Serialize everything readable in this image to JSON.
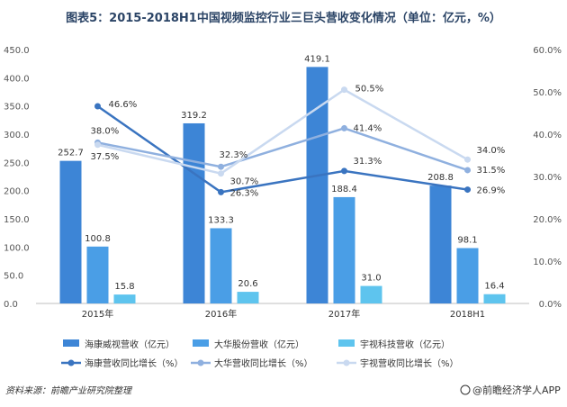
{
  "chart_data": {
    "type": "bar",
    "title": "图表5：2015-2018H1中国视频监控行业三巨头营收变化情况（单位：亿元，%）",
    "categories": [
      "2015年",
      "2016年",
      "2017年",
      "2018H1"
    ],
    "series": [
      {
        "name": "海康威视营收（亿元）",
        "kind": "bar",
        "axis": "left",
        "color": "#3d85d6",
        "values": [
          252.7,
          319.2,
          419.1,
          208.8
        ]
      },
      {
        "name": "大华股份营收（亿元）",
        "kind": "bar",
        "axis": "left",
        "color": "#4a9ee6",
        "values": [
          100.8,
          133.3,
          188.4,
          98.1
        ]
      },
      {
        "name": "宇视科技营收（亿元）",
        "kind": "bar",
        "axis": "left",
        "color": "#5ec4ee",
        "values": [
          15.8,
          20.6,
          31.0,
          16.4
        ]
      },
      {
        "name": "海康营收同比增长（%）",
        "kind": "line",
        "axis": "right",
        "color": "#3a74c0",
        "values": [
          46.6,
          26.3,
          31.3,
          26.9
        ]
      },
      {
        "name": "大华营收同比增长（%）",
        "kind": "line",
        "axis": "right",
        "color": "#8fb0df",
        "values": [
          38.0,
          32.3,
          41.4,
          31.5
        ]
      },
      {
        "name": "宇视营收同比增长（%）",
        "kind": "line",
        "axis": "right",
        "color": "#c9d9f0",
        "values": [
          37.5,
          30.7,
          50.5,
          34.0
        ]
      }
    ],
    "y_left": {
      "min": 0,
      "max": 450,
      "step": 50,
      "ticks": [
        "0.0",
        "50.0",
        "100.0",
        "150.0",
        "200.0",
        "250.0",
        "300.0",
        "350.0",
        "400.0",
        "450.0"
      ]
    },
    "y_right": {
      "min": 0,
      "max": 60,
      "step": 10,
      "ticks": [
        "0.0%",
        "10.0%",
        "20.0%",
        "30.0%",
        "40.0%",
        "50.0%",
        "60.0%"
      ]
    },
    "bar_labels": [
      [
        "252.7",
        "319.2",
        "419.1",
        "208.8"
      ],
      [
        "100.8",
        "133.3",
        "188.4",
        "98.1"
      ],
      [
        "15.8",
        "20.6",
        "31.0",
        "16.4"
      ]
    ],
    "line_labels": [
      [
        "46.6%",
        "26.3%",
        "31.3%",
        "26.9%"
      ],
      [
        "38.0%",
        "32.3%",
        "41.4%",
        "31.5%"
      ],
      [
        "37.5%",
        "30.7%",
        "50.5%",
        "34.0%"
      ]
    ],
    "legend_position": "bottom"
  },
  "footer": {
    "source": "资料来源：前瞻产业研究院整理",
    "brand": "@前瞻经济学人APP"
  }
}
